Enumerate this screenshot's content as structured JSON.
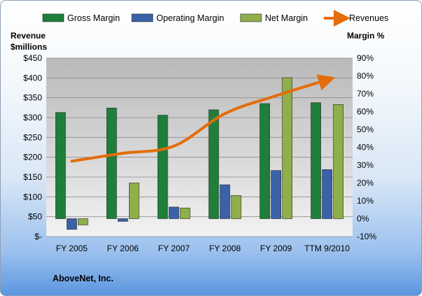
{
  "chart_data": {
    "type": "bar",
    "categories": [
      "FY 2005",
      "FY 2006",
      "FY 2007",
      "FY 2008",
      "FY 2009",
      "TTM 9/2010"
    ],
    "series": [
      {
        "name": "Gross Margin",
        "axis": "right",
        "color": "#1e7f3a",
        "values": [
          59.5,
          62,
          58,
          61,
          64.5,
          65
        ]
      },
      {
        "name": "Operating Margin",
        "axis": "right",
        "color": "#3a62a8",
        "values": [
          -6,
          -1.5,
          6.5,
          19,
          27,
          27.5
        ]
      },
      {
        "name": "Net Margin",
        "axis": "right",
        "color": "#8faf4a",
        "values": [
          -3.5,
          20,
          6,
          13,
          79,
          64
        ]
      },
      {
        "name": "Revenues",
        "type": "line",
        "axis": "left",
        "color": "#e46c0a",
        "values": [
          190,
          210,
          228,
          310,
          355,
          395
        ]
      }
    ],
    "left_axis": {
      "label_line1": "Revenue",
      "label_line2": "$millions",
      "min": 0,
      "max": 450,
      "step": 50,
      "ticks": [
        "$-",
        "$50",
        "$100",
        "$150",
        "$200",
        "$250",
        "$300",
        "$350",
        "$400",
        "$450"
      ]
    },
    "right_axis": {
      "label": "Margin  %",
      "min": -10,
      "max": 90,
      "step": 10,
      "ticks": [
        "-10%",
        "0%",
        "10%",
        "20%",
        "30%",
        "40%",
        "50%",
        "60%",
        "70%",
        "80%",
        "90%"
      ]
    },
    "grid": true,
    "legend_position": "top"
  },
  "footer": {
    "company": "AboveNet, Inc."
  }
}
